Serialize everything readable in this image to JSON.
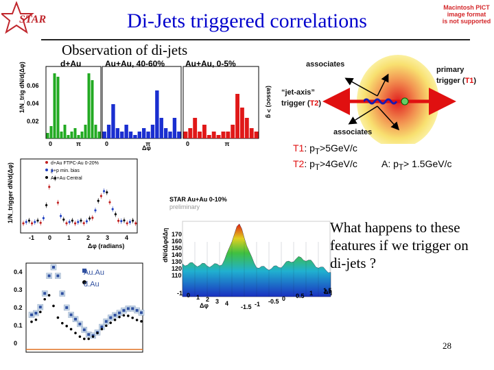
{
  "header": {
    "title": "Di-Jets triggered correlations",
    "logo_text": "STAR",
    "pict_placeholder": [
      "Macintosh PICT",
      "image format",
      "is not supported"
    ]
  },
  "subtitle": "Observation of di-jets",
  "top_panels": {
    "titles": [
      "d+Au",
      "Au+Au, 40-60%",
      "Au+Au, 0-5%"
    ],
    "colors": [
      "#22aa22",
      "#1a2fd0",
      "#e01818"
    ],
    "y_axis_label": "1/N_trig dN/d(Δφ)",
    "y_ticks": [
      "0.06",
      "0.04",
      "0.02"
    ],
    "x_ticks": [
      "0",
      "π"
    ],
    "x_axis_label": "Δφ",
    "right_label": "(assoc) > g"
  },
  "schematic": {
    "associates_top": "associates",
    "primary_trigger": "primary",
    "primary_trigger_2": "trigger (",
    "t1": "T1",
    "close_paren": ")",
    "jet_axis": "“jet-axis”",
    "jet_trigger": "trigger (",
    "t2": "T2",
    "associates_bottom": "associates"
  },
  "cuts": {
    "t1_label": "T1",
    "t1_text": ": p",
    "t1_sub": "T",
    "t1_value": ">5GeV/c",
    "t2_label": "T2",
    "t2_text": ": p",
    "t2_sub": "T",
    "t2_value": ">4GeV/c",
    "a_text": "A: p",
    "a_sub": "T",
    "a_value": "> 1.5GeV/c"
  },
  "ftpc_plot": {
    "legend": [
      "d+Au FTPC-Au 0-20%",
      "p+p min. bias",
      "Au+Au Central"
    ],
    "x_label": "Δφ (radians)",
    "y_label": "1/N_trigger dN/d(Δφ)",
    "x_ticks": [
      "-1",
      "0",
      "1",
      "2",
      "3",
      "4"
    ]
  },
  "surface_plot": {
    "title": "STAR Au+Au 0-10%",
    "subtitle": "preliminary",
    "z_label": "dN/dΔφdΔη",
    "z_ticks": [
      "170",
      "160",
      "150",
      "140",
      "130",
      "120",
      "110"
    ],
    "x_label": "Δφ",
    "y_label": "Δη",
    "x_ticks": [
      "-1",
      "0",
      "1",
      "2",
      "3",
      "4"
    ],
    "y_ticks": [
      "-1.5",
      "-1",
      "-0.5",
      "0",
      "0.5",
      "1",
      "1.5"
    ]
  },
  "bottom_plot": {
    "legend": [
      "Au.Au",
      "d.Au"
    ],
    "y_ticks": [
      "0.4",
      "0.3",
      "0.2",
      "0.1",
      "0"
    ]
  },
  "question": "What happens to these features if we trigger on di-jets ?",
  "page_number": "28"
}
